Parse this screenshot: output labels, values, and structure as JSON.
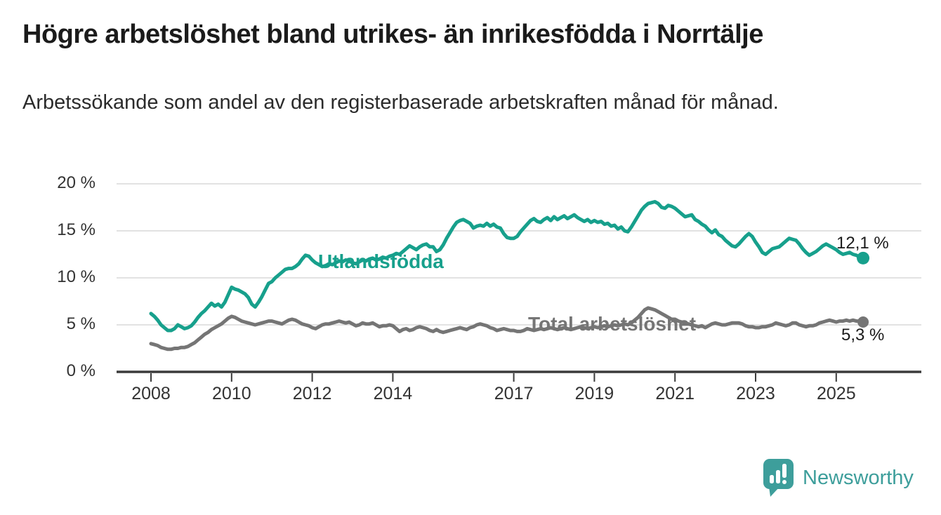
{
  "title": "Högre arbetslöshet bland utrikes- än inrikesfödda i Norrtälje",
  "subtitle": "Arbetssökande som andel av den registerbaserade arbetskraften månad för månad.",
  "chart_data": {
    "type": "line",
    "unit": "%",
    "grid": "horizontal",
    "ylim": [
      0,
      20
    ],
    "xlim": [
      2007.2,
      2027.1
    ],
    "y_ticks": [
      {
        "value": 0,
        "label": "0 %"
      },
      {
        "value": 5,
        "label": "5 %"
      },
      {
        "value": 10,
        "label": "10 %"
      },
      {
        "value": 15,
        "label": "15 %"
      },
      {
        "value": 20,
        "label": "20 %"
      }
    ],
    "x_ticks": [
      2008,
      2010,
      2012,
      2014,
      2017,
      2019,
      2021,
      2023,
      2025
    ],
    "x_tick_labels": [
      "2008",
      "2010",
      "2012",
      "2014",
      "2017",
      "2019",
      "2021",
      "2023",
      "2025"
    ],
    "series": [
      {
        "name": "Utlandsfödda",
        "slug": "utlandsfodda",
        "color": "#17a08c",
        "end_label": "12,1 %",
        "end_value": 12.1,
        "frequency": "monthly",
        "start_year": 2008,
        "start_month": 1,
        "values": [
          6.2,
          5.9,
          5.5,
          5.0,
          4.7,
          4.4,
          4.4,
          4.6,
          5.0,
          4.8,
          4.6,
          4.7,
          4.9,
          5.3,
          5.8,
          6.2,
          6.5,
          6.9,
          7.3,
          7.0,
          7.2,
          6.9,
          7.4,
          8.2,
          9.0,
          8.8,
          8.7,
          8.5,
          8.3,
          7.9,
          7.2,
          6.9,
          7.4,
          8.0,
          8.7,
          9.4,
          9.6,
          10.0,
          10.3,
          10.6,
          10.9,
          11.0,
          11.0,
          11.2,
          11.5,
          12.0,
          12.4,
          12.3,
          11.9,
          11.6,
          11.4,
          11.2,
          11.3,
          11.5,
          11.4,
          11.6,
          11.8,
          11.7,
          11.9,
          11.8,
          11.6,
          11.5,
          11.7,
          11.9,
          11.8,
          12.0,
          12.1,
          11.9,
          12.0,
          12.2,
          12.1,
          12.3,
          12.4,
          12.6,
          12.5,
          12.8,
          13.1,
          13.4,
          13.2,
          13.0,
          13.3,
          13.5,
          13.6,
          13.3,
          13.3,
          12.8,
          13.0,
          13.5,
          14.2,
          14.8,
          15.4,
          15.9,
          16.1,
          16.2,
          16.0,
          15.8,
          15.3,
          15.5,
          15.6,
          15.5,
          15.8,
          15.5,
          15.7,
          15.4,
          15.3,
          14.7,
          14.3,
          14.2,
          14.2,
          14.4,
          14.9,
          15.3,
          15.7,
          16.1,
          16.3,
          16.0,
          15.9,
          16.2,
          16.4,
          16.1,
          16.5,
          16.2,
          16.4,
          16.6,
          16.3,
          16.5,
          16.7,
          16.4,
          16.2,
          16.0,
          16.2,
          15.9,
          16.1,
          15.9,
          16.0,
          15.7,
          15.8,
          15.5,
          15.6,
          15.2,
          15.4,
          15.0,
          14.9,
          15.4,
          16.0,
          16.6,
          17.2,
          17.6,
          17.9,
          18.0,
          18.1,
          17.9,
          17.5,
          17.4,
          17.7,
          17.6,
          17.4,
          17.1,
          16.8,
          16.5,
          16.6,
          16.7,
          16.2,
          16.0,
          15.7,
          15.5,
          15.1,
          14.8,
          15.1,
          14.6,
          14.4,
          14.0,
          13.7,
          13.4,
          13.3,
          13.6,
          14.0,
          14.4,
          14.7,
          14.4,
          13.8,
          13.3,
          12.7,
          12.5,
          12.8,
          13.1,
          13.2,
          13.3,
          13.6,
          13.9,
          14.2,
          14.1,
          14.0,
          13.6,
          13.1,
          12.7,
          12.4,
          12.6,
          12.8,
          13.1,
          13.4,
          13.6,
          13.4,
          13.2,
          13.0,
          12.7,
          12.5,
          12.6,
          12.7,
          12.5,
          12.4,
          12.2,
          12.1
        ]
      },
      {
        "name": "Total arbetslöshet",
        "slug": "total-arbetsloshet",
        "color": "#757575",
        "end_label": "5,3 %",
        "end_value": 5.3,
        "frequency": "monthly",
        "start_year": 2008,
        "start_month": 1,
        "values": [
          3.0,
          2.9,
          2.8,
          2.6,
          2.5,
          2.4,
          2.4,
          2.5,
          2.5,
          2.6,
          2.6,
          2.7,
          2.9,
          3.1,
          3.4,
          3.7,
          4.0,
          4.2,
          4.5,
          4.7,
          4.9,
          5.1,
          5.4,
          5.7,
          5.9,
          5.8,
          5.6,
          5.4,
          5.3,
          5.2,
          5.1,
          5.0,
          5.1,
          5.2,
          5.3,
          5.4,
          5.4,
          5.3,
          5.2,
          5.1,
          5.3,
          5.5,
          5.6,
          5.5,
          5.3,
          5.1,
          5.0,
          4.9,
          4.7,
          4.6,
          4.8,
          5.0,
          5.1,
          5.1,
          5.2,
          5.3,
          5.4,
          5.3,
          5.2,
          5.3,
          5.1,
          4.9,
          5.0,
          5.2,
          5.1,
          5.1,
          5.2,
          5.0,
          4.8,
          4.9,
          4.9,
          5.0,
          4.9,
          4.6,
          4.3,
          4.5,
          4.6,
          4.4,
          4.5,
          4.7,
          4.8,
          4.7,
          4.6,
          4.4,
          4.3,
          4.5,
          4.3,
          4.2,
          4.3,
          4.4,
          4.5,
          4.6,
          4.7,
          4.6,
          4.5,
          4.7,
          4.8,
          5.0,
          5.1,
          5.0,
          4.9,
          4.7,
          4.6,
          4.4,
          4.5,
          4.6,
          4.5,
          4.4,
          4.4,
          4.3,
          4.3,
          4.4,
          4.6,
          4.5,
          4.4,
          4.5,
          4.6,
          4.5,
          4.6,
          4.7,
          4.6,
          4.5,
          4.6,
          4.7,
          4.6,
          4.5,
          4.6,
          4.7,
          4.8,
          4.7,
          4.6,
          4.7,
          4.8,
          4.7,
          4.8,
          4.9,
          4.8,
          4.9,
          5.0,
          4.9,
          5.0,
          5.1,
          5.0,
          5.2,
          5.5,
          5.8,
          6.2,
          6.6,
          6.8,
          6.7,
          6.6,
          6.4,
          6.2,
          6.0,
          5.8,
          5.6,
          5.6,
          5.4,
          5.3,
          5.2,
          5.1,
          5.0,
          4.9,
          4.8,
          4.9,
          4.7,
          4.9,
          5.1,
          5.2,
          5.1,
          5.0,
          5.0,
          5.1,
          5.2,
          5.2,
          5.2,
          5.1,
          4.9,
          4.8,
          4.8,
          4.7,
          4.7,
          4.8,
          4.8,
          4.9,
          5.0,
          5.2,
          5.1,
          5.0,
          4.9,
          5.0,
          5.2,
          5.2,
          5.0,
          4.9,
          4.8,
          4.9,
          4.9,
          5.0,
          5.2,
          5.3,
          5.4,
          5.5,
          5.4,
          5.3,
          5.4,
          5.4,
          5.5,
          5.4,
          5.5,
          5.4,
          5.4,
          5.3
        ]
      }
    ],
    "colors": {
      "grid": "#d8d8d8",
      "axis": "#3b3b3b",
      "tick_label": "#333333"
    }
  },
  "branding": {
    "logo_text": "Newsworthy",
    "logo_color": "#3d9e9b",
    "logo_icon": "speech-bubble-bar-chart"
  }
}
